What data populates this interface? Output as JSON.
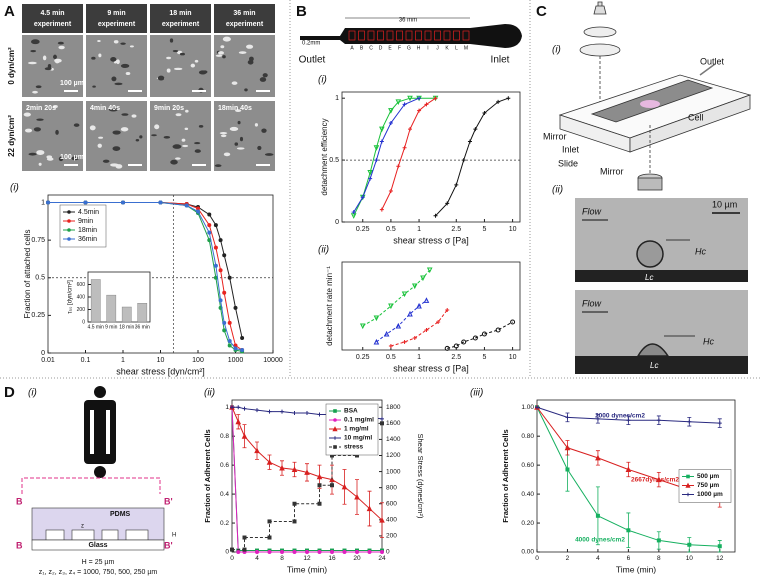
{
  "panel_labels": [
    "A",
    "B",
    "C",
    "D"
  ],
  "panel_a": {
    "columns": [
      [
        "4.5 min",
        "experiment"
      ],
      [
        "9 min",
        "experiment"
      ],
      [
        "18 min",
        "experiment"
      ],
      [
        "36 min",
        "experiment"
      ]
    ],
    "rows": [
      "0 dyn/cm²",
      "22 dyn/cm²"
    ],
    "scale_bar": "100 µm",
    "times": [
      "2min 20s",
      "4min 40s",
      "9min 20s",
      "18min 40s"
    ],
    "sub": "(i)"
  },
  "panel_b": {
    "length": "36 mm",
    "width": "0.2mm",
    "letters": [
      "A",
      "B",
      "C",
      "D",
      "E",
      "F",
      "G",
      "H",
      "I",
      "J",
      "K",
      "L",
      "M"
    ],
    "outlet": "Outlet",
    "inlet": "Inlet",
    "subs": [
      "(i)",
      "(ii)"
    ]
  },
  "panel_c": {
    "subs": [
      "(i)",
      "(ii)"
    ],
    "outlet": "Outlet",
    "cell": "Cell",
    "mirror": "Mirror",
    "inlet": "Inlet",
    "slide": "Slide",
    "scale": "10 µm",
    "flow": "Flow",
    "hc": "Hc",
    "lc": "Lc"
  },
  "panel_d": {
    "subs": [
      "(i)",
      "(ii)",
      "(iii)"
    ],
    "b": "B",
    "b_prime": "B'",
    "pdms": "PDMS",
    "z": "z",
    "h": "H",
    "glass": "Glass",
    "height": "H = 25 µm",
    "widths": "z₁, z₂, z₃, z₄ = 1000, 750, 500, 250 µm"
  },
  "chart_data": [
    {
      "type": "line",
      "xlog": true,
      "xlabel": "shear stress [dyn/cm²]",
      "ylabel": "Fraction of attached cells",
      "xlim": [
        0.01,
        10000
      ],
      "xticks": [
        0.01,
        0.1,
        1,
        10,
        100,
        1000,
        10000
      ],
      "ylim": [
        0,
        1.05
      ],
      "yticks": [
        0,
        0.25,
        0.5,
        0.75,
        1
      ],
      "hlines": [
        0.5
      ],
      "vlines": [
        22
      ],
      "legend": "upper left",
      "x": [
        0.01,
        0.1,
        1,
        10,
        50,
        100,
        200,
        300,
        400,
        500,
        700,
        1000,
        1500
      ],
      "series": [
        {
          "name": "4.5min",
          "color": "#222222",
          "marker": "circle",
          "values": [
            1,
            1,
            1,
            1,
            0.99,
            0.97,
            0.92,
            0.85,
            0.75,
            0.65,
            0.5,
            0.3,
            0.1
          ]
        },
        {
          "name": "9min",
          "color": "#e8231f",
          "marker": "circle",
          "values": [
            1,
            1,
            1,
            1,
            0.99,
            0.96,
            0.85,
            0.7,
            0.55,
            0.4,
            0.2,
            0.05,
            0.02
          ]
        },
        {
          "name": "18min",
          "color": "#1ea04a",
          "marker": "circle",
          "values": [
            1,
            1,
            1,
            1,
            0.98,
            0.93,
            0.75,
            0.5,
            0.3,
            0.15,
            0.05,
            0.02,
            0.01
          ]
        },
        {
          "name": "36min",
          "color": "#3a6fd0",
          "marker": "circle",
          "values": [
            1,
            1,
            1,
            1,
            0.98,
            0.94,
            0.8,
            0.58,
            0.35,
            0.2,
            0.08,
            0.03,
            0.02
          ]
        }
      ]
    },
    {
      "type": "bar",
      "ylabel": "τ₅₀ [dyn/cm²]",
      "categories": [
        "4.5 min",
        "9 min",
        "18 min",
        "36 min"
      ],
      "values": [
        680,
        430,
        240,
        300
      ],
      "color": "#bdbdbd",
      "ylim": [
        0,
        800
      ],
      "yticks": [
        0,
        200,
        400,
        600
      ]
    },
    {
      "type": "line",
      "xlog": true,
      "xlabel": "shear stress σ [Pa]",
      "ylabel": "detachment  efficiency",
      "xlim": [
        0.15,
        12
      ],
      "xticks": [
        0.25,
        0.5,
        1,
        2.5,
        5,
        10
      ],
      "ylim": [
        0,
        1.05
      ],
      "yticks": [
        0,
        0.5,
        1
      ],
      "hlines": [
        0.5
      ],
      "series": [
        {
          "color": "#19c23a",
          "marker": "triangle-down",
          "x": [
            0.2,
            0.25,
            0.3,
            0.35,
            0.4,
            0.5,
            0.6,
            0.8,
            1,
            1.5
          ],
          "values": [
            0.05,
            0.2,
            0.4,
            0.6,
            0.75,
            0.9,
            0.97,
            1,
            1,
            1
          ]
        },
        {
          "color": "#2230d0",
          "marker": "cross",
          "x": [
            0.2,
            0.25,
            0.3,
            0.35,
            0.4,
            0.5,
            0.7,
            1
          ],
          "values": [
            0.08,
            0.2,
            0.35,
            0.5,
            0.65,
            0.8,
            0.95,
            1
          ]
        },
        {
          "color": "#e82020",
          "marker": "cross",
          "x": [
            0.4,
            0.5,
            0.6,
            0.7,
            0.8,
            1,
            1.2,
            1.5
          ],
          "values": [
            0.1,
            0.25,
            0.45,
            0.6,
            0.75,
            0.9,
            0.95,
            1
          ]
        },
        {
          "color": "#111111",
          "marker": "cross",
          "x": [
            1.5,
            2,
            2.5,
            3,
            3.5,
            4,
            5,
            7,
            9
          ],
          "values": [
            0.05,
            0.15,
            0.3,
            0.5,
            0.65,
            0.75,
            0.88,
            0.97,
            1
          ]
        }
      ]
    },
    {
      "type": "line",
      "xlog": true,
      "xlabel": "shear stress σ [Pa]",
      "ylabel": "detachment  rate  min⁻¹",
      "xlim": [
        0.15,
        12
      ],
      "xticks": [
        0.25,
        0.5,
        1,
        2.5,
        5,
        10
      ],
      "ylim": [
        0,
        1.1
      ],
      "series": [
        {
          "color": "#19c23a",
          "marker": "triangle-down",
          "dash": true,
          "x": [
            0.25,
            0.35,
            0.5,
            0.7,
            0.9,
            1.1,
            1.3
          ],
          "values": [
            0.3,
            0.4,
            0.55,
            0.7,
            0.8,
            0.9,
            1.0
          ]
        },
        {
          "color": "#2230d0",
          "marker": "triangle-up",
          "dash": true,
          "x": [
            0.35,
            0.45,
            0.6,
            0.8,
            1,
            1.2
          ],
          "values": [
            0.1,
            0.2,
            0.3,
            0.45,
            0.55,
            0.62
          ]
        },
        {
          "color": "#e82020",
          "marker": "cross",
          "dash": true,
          "x": [
            0.5,
            0.7,
            0.9,
            1.2,
            1.6,
            2
          ],
          "values": [
            0.05,
            0.1,
            0.15,
            0.25,
            0.35,
            0.5
          ]
        },
        {
          "color": "#111111",
          "marker": "circle-open",
          "dash": true,
          "x": [
            2,
            2.5,
            3,
            4,
            5,
            7,
            10
          ],
          "values": [
            0.02,
            0.05,
            0.1,
            0.15,
            0.2,
            0.25,
            0.35
          ]
        }
      ]
    },
    {
      "type": "line",
      "xlabel": "Time (min)",
      "ylabel": "Fraction of Adherent Cells",
      "y2label": "Shear Stress (dynes/cm²)",
      "xlim": [
        0,
        24
      ],
      "xticks": [
        0,
        4,
        8,
        12,
        16,
        20,
        24
      ],
      "ylim": [
        0,
        1.05
      ],
      "yticks": [
        0,
        0.2,
        0.4,
        0.6,
        0.8,
        1
      ],
      "y2lim": [
        0,
        1890
      ],
      "y2ticks": [
        0,
        200,
        400,
        600,
        800,
        1000,
        1200,
        1400,
        1600,
        1800
      ],
      "legend": "upper right",
      "x": [
        0,
        1,
        2,
        4,
        6,
        8,
        10,
        12,
        14,
        16,
        18,
        20,
        22,
        24
      ],
      "series": [
        {
          "name": "BSA",
          "color": "#16a050",
          "marker": "square",
          "values": [
            1,
            0.01,
            0.01,
            0.01,
            0.01,
            0.01,
            0.01,
            0.01,
            0.01,
            0.01,
            0.01,
            0.01,
            0.01,
            0.01
          ]
        },
        {
          "name": "0.1 mg/ml",
          "color": "#e020c0",
          "marker": "circle",
          "values": [
            1,
            0,
            0,
            0,
            0,
            0,
            0,
            0,
            0,
            0,
            0,
            0,
            0,
            0
          ]
        },
        {
          "name": "1 mg/ml",
          "color": "#d82020",
          "marker": "triangle-up",
          "values": [
            1,
            0.9,
            0.8,
            0.7,
            0.62,
            0.58,
            0.57,
            0.55,
            0.52,
            0.5,
            0.45,
            0.38,
            0.3,
            0.22
          ],
          "errors": [
            0,
            0.05,
            0.08,
            0.06,
            0.05,
            0.05,
            0.05,
            0.06,
            0.08,
            0.1,
            0.12,
            0.12,
            0.12,
            0.12
          ]
        },
        {
          "name": "10 mg/ml",
          "color": "#2a2a80",
          "marker": "cross",
          "values": [
            1,
            1,
            0.99,
            0.98,
            0.97,
            0.97,
            0.96,
            0.96,
            0.95,
            0.95,
            0.94,
            0.93,
            0.93,
            0.92
          ]
        },
        {
          "name": "stress",
          "color": "#333333",
          "marker": "square",
          "dash": true,
          "axis": "y2",
          "x": [
            0,
            2,
            2,
            6,
            6,
            10,
            10,
            14,
            14,
            16,
            16,
            20,
            20,
            24
          ],
          "values": [
            30,
            30,
            180,
            180,
            380,
            380,
            600,
            600,
            830,
            830,
            1200,
            1200,
            1600,
            1600
          ]
        }
      ]
    },
    {
      "type": "line",
      "xlabel": "Time (min)",
      "ylabel": "Fraction of Adherent Cells",
      "xlim": [
        0,
        13
      ],
      "xticks": [
        0,
        2,
        4,
        6,
        8,
        10,
        12
      ],
      "ylim": [
        0,
        1.05
      ],
      "yticks": [
        {
          "value": 0,
          "label": "0.00"
        },
        {
          "value": 0.2,
          "label": "0.20"
        },
        {
          "value": 0.4,
          "label": "0.40"
        },
        {
          "value": 0.6,
          "label": "0.60"
        },
        {
          "value": 0.8,
          "label": "0.80"
        },
        {
          "value": 1,
          "label": "1.00"
        }
      ],
      "legend": "right",
      "x": [
        0,
        2,
        4,
        6,
        8,
        10,
        12
      ],
      "annotations": [
        {
          "text": "2000 dynes/cm2",
          "color": "#2a2a80"
        },
        {
          "text": "2667dynes/cm2",
          "color": "#d82020"
        },
        {
          "text": "4000 dynes/cm2",
          "color": "#16b060"
        }
      ],
      "series": [
        {
          "name": "500 µm",
          "color": "#16b060",
          "marker": "square",
          "values": [
            1,
            0.57,
            0.25,
            0.15,
            0.08,
            0.05,
            0.04
          ],
          "errors": [
            0,
            0.15,
            0.2,
            0.12,
            0.06,
            0.05,
            0.04
          ]
        },
        {
          "name": "750 µm",
          "color": "#d82020",
          "marker": "triangle-up",
          "values": [
            1,
            0.72,
            0.65,
            0.57,
            0.5,
            0.43,
            0.36
          ],
          "errors": [
            0,
            0.05,
            0.05,
            0.05,
            0.05,
            0.05,
            0.05
          ]
        },
        {
          "name": "1000 µm",
          "color": "#2a2a80",
          "marker": "cross",
          "values": [
            1,
            0.93,
            0.92,
            0.91,
            0.91,
            0.9,
            0.89
          ],
          "errors": [
            0,
            0.03,
            0.03,
            0.03,
            0.03,
            0.03,
            0.03
          ]
        }
      ]
    }
  ]
}
